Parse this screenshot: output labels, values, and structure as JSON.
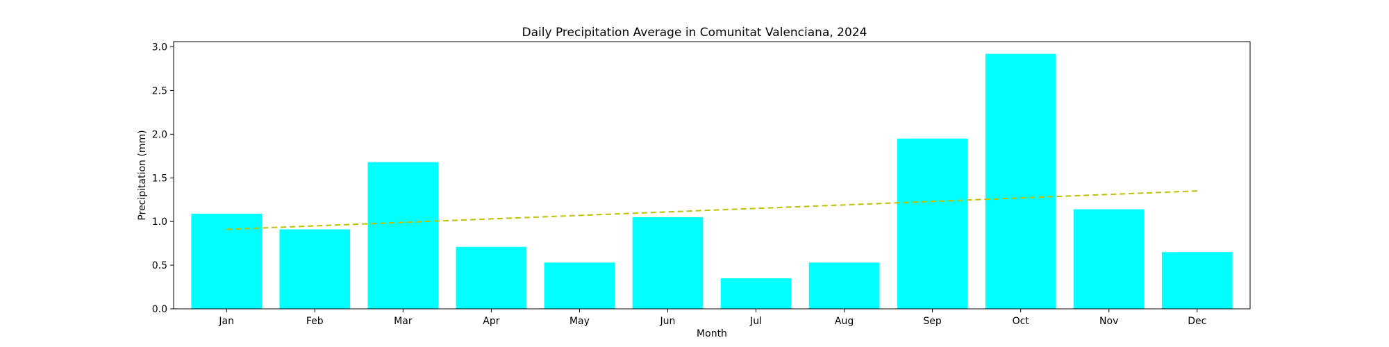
{
  "chart_data": {
    "type": "bar",
    "title": "Daily Precipitation Average in Comunitat Valenciana, 2024",
    "xlabel": "Month",
    "ylabel": "Precipitation (mm)",
    "categories": [
      "Jan",
      "Feb",
      "Mar",
      "Apr",
      "May",
      "Jun",
      "Jul",
      "Aug",
      "Sep",
      "Oct",
      "Nov",
      "Dec"
    ],
    "values": [
      1.09,
      0.91,
      1.68,
      0.71,
      0.53,
      1.05,
      0.35,
      0.53,
      1.95,
      2.92,
      1.14,
      0.65
    ],
    "ylim": [
      0,
      3.06
    ],
    "yticks": [
      0.0,
      0.5,
      1.0,
      1.5,
      2.0,
      2.5,
      3.0
    ],
    "ytick_labels": [
      "0.0",
      "0.5",
      "1.0",
      "1.5",
      "2.0",
      "2.5",
      "3.0"
    ],
    "bar_color": "#00ffff",
    "trend_line": {
      "style": "dashed",
      "color": "#bfbf00",
      "start": 0.91,
      "end": 1.35
    },
    "grid": false,
    "legend": "none"
  }
}
